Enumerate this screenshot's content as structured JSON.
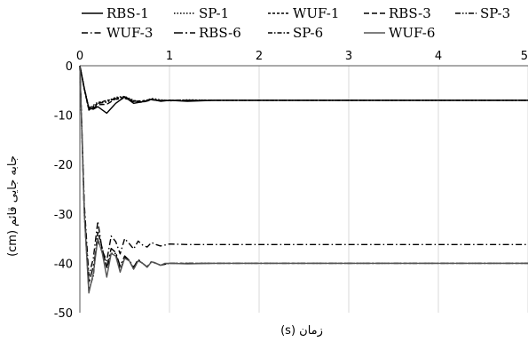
{
  "chart_data": {
    "type": "line",
    "xlabel": "زمان (s)",
    "ylabel": "جابه جایی قائم (cm)",
    "xlim": [
      0,
      5
    ],
    "ylim": [
      -50,
      0
    ],
    "x_ticks": [
      {
        "value": 0,
        "label": "0"
      },
      {
        "value": 1,
        "label": "1"
      },
      {
        "value": 2,
        "label": "2"
      },
      {
        "value": 3,
        "label": "3"
      },
      {
        "value": 4,
        "label": "4"
      },
      {
        "value": 5,
        "label": "5"
      }
    ],
    "y_ticks": [
      {
        "value": 0,
        "label": "0"
      },
      {
        "value": -10,
        "label": "-10"
      },
      {
        "value": -20,
        "label": "-20"
      },
      {
        "value": -30,
        "label": "-30"
      },
      {
        "value": -40,
        "label": "-40"
      },
      {
        "value": -50,
        "label": "-50"
      }
    ],
    "grid": {
      "vertical": true,
      "horizontal": false
    },
    "legend_position": "top",
    "series": [
      {
        "name": "RBS-1",
        "color": "#000000",
        "dash": "solid",
        "x": [
          0,
          0.05,
          0.1,
          0.15,
          0.2,
          0.3,
          0.4,
          0.5,
          0.6,
          0.7,
          0.8,
          0.9,
          1.0,
          1.2,
          1.5,
          2,
          3,
          4,
          5
        ],
        "y": [
          0,
          -4.6,
          -8.6,
          -8.8,
          -8.3,
          -9.6,
          -7.6,
          -6.3,
          -7.6,
          -7.3,
          -6.8,
          -7.2,
          -7.0,
          -7.2,
          -7.0,
          -7.0,
          -7.0,
          -7.0,
          -7.0
        ]
      },
      {
        "name": "SP-1",
        "color": "#000000",
        "dash": "dotted",
        "x": [
          0,
          0.05,
          0.1,
          0.15,
          0.2,
          0.3,
          0.4,
          0.5,
          0.6,
          0.7,
          0.8,
          0.9,
          1.0,
          1.2,
          1.5,
          2,
          3,
          4,
          5
        ],
        "y": [
          0,
          -4.5,
          -8.7,
          -8.0,
          -7.4,
          -7.2,
          -6.4,
          -6.2,
          -7.0,
          -7.4,
          -6.6,
          -6.9,
          -7.1,
          -6.9,
          -7.0,
          -7.0,
          -7.0,
          -7.0,
          -7.0
        ]
      },
      {
        "name": "WUF-1",
        "color": "#000000",
        "dash": "dashed-short",
        "x": [
          0,
          0.05,
          0.1,
          0.15,
          0.2,
          0.3,
          0.4,
          0.5,
          0.6,
          0.7,
          0.8,
          0.9,
          1.0,
          1.2,
          1.5,
          2,
          3,
          4,
          5
        ],
        "y": [
          0,
          -4.8,
          -9.0,
          -8.4,
          -7.6,
          -7.0,
          -6.8,
          -6.6,
          -7.2,
          -7.1,
          -6.8,
          -7.1,
          -7.0,
          -7.0,
          -7.0,
          -7.0,
          -7.0,
          -7.0,
          -7.0
        ]
      },
      {
        "name": "RBS-3",
        "color": "#000000",
        "dash": "dashed-long",
        "x": [
          0,
          0.05,
          0.1,
          0.15,
          0.2,
          0.3,
          0.4,
          0.5,
          0.6,
          0.7,
          0.8,
          0.9,
          1.0,
          1.2,
          1.5,
          2,
          3,
          4,
          5
        ],
        "y": [
          0,
          -4.7,
          -8.8,
          -8.6,
          -7.9,
          -7.8,
          -6.7,
          -6.4,
          -7.3,
          -7.4,
          -6.9,
          -7.1,
          -7.0,
          -7.0,
          -7.0,
          -7.0,
          -7.0,
          -7.0,
          -7.0
        ]
      },
      {
        "name": "SP-3",
        "color": "#000000",
        "dash": "dash-dot-dot",
        "x": [
          0,
          0.05,
          0.1,
          0.15,
          0.2,
          0.3,
          0.4,
          0.5,
          0.6,
          0.7,
          0.8,
          0.9,
          1.0,
          1.2,
          1.5,
          2,
          3,
          4,
          5
        ],
        "y": [
          0,
          -4.6,
          -8.5,
          -8.2,
          -7.6,
          -7.4,
          -6.5,
          -6.3,
          -7.1,
          -7.3,
          -6.8,
          -7.0,
          -7.0,
          -7.0,
          -7.0,
          -7.0,
          -7.0,
          -7.0,
          -7.0
        ]
      },
      {
        "name": "WUF-3",
        "color": "#000000",
        "dash": "dash-dot",
        "x": [
          0,
          0.05,
          0.1,
          0.15,
          0.2,
          0.25,
          0.3,
          0.35,
          0.4,
          0.45,
          0.5,
          0.55,
          0.6,
          0.65,
          0.7,
          0.75,
          0.8,
          0.85,
          0.9,
          1.0,
          1.2,
          1.5,
          2,
          3,
          4,
          5
        ],
        "y": [
          0,
          -28,
          -42.5,
          -39,
          -31.5,
          -37.5,
          -39.5,
          -34.5,
          -35.6,
          -38.1,
          -35,
          -36,
          -37.1,
          -35.5,
          -36.3,
          -36.7,
          -35.8,
          -36.2,
          -36.5,
          -36.1,
          -36.2,
          -36.2,
          -36.2,
          -36.2,
          -36.2,
          -36.2
        ]
      },
      {
        "name": "RBS-6",
        "color": "#000000",
        "dash": "dash-dot-long",
        "x": [
          0,
          0.05,
          0.1,
          0.15,
          0.2,
          0.25,
          0.3,
          0.35,
          0.4,
          0.45,
          0.5,
          0.55,
          0.6,
          0.65,
          0.7,
          0.75,
          0.8,
          0.85,
          0.9,
          1.0,
          1.2,
          1.5,
          2,
          3,
          4,
          5
        ],
        "y": [
          0,
          -29,
          -44.0,
          -40.5,
          -35.5,
          -37.2,
          -40.8,
          -37.0,
          -37.8,
          -40.6,
          -38.5,
          -39.4,
          -40.8,
          -39.2,
          -40.0,
          -40.7,
          -39.6,
          -40.0,
          -40.4,
          -40.0,
          -40.0,
          -40.0,
          -40.0,
          -40.0,
          -40.0,
          -40.0
        ]
      },
      {
        "name": "SP-6",
        "color": "#000000",
        "dash": "dash-dot-short",
        "x": [
          0,
          0.05,
          0.1,
          0.15,
          0.2,
          0.25,
          0.3,
          0.35,
          0.4,
          0.45,
          0.5,
          0.55,
          0.6,
          0.65,
          0.7,
          0.75,
          0.8,
          0.85,
          0.9,
          1.0,
          1.2,
          1.5,
          2,
          3,
          4,
          5
        ],
        "y": [
          0,
          -30,
          -45.5,
          -42.5,
          -33.5,
          -37.0,
          -41.0,
          -38.0,
          -38.0,
          -41.5,
          -38.8,
          -39.4,
          -41.2,
          -39.4,
          -40.0,
          -40.8,
          -39.7,
          -40.0,
          -40.4,
          -40.0,
          -40.0,
          -40.0,
          -40.0,
          -40.0,
          -40.0,
          -40.0
        ]
      },
      {
        "name": "WUF-6",
        "color": "#555555",
        "dash": "solid",
        "x": [
          0,
          0.05,
          0.1,
          0.15,
          0.2,
          0.25,
          0.3,
          0.35,
          0.4,
          0.45,
          0.5,
          0.55,
          0.6,
          0.65,
          0.7,
          0.75,
          0.8,
          0.85,
          0.9,
          0.95,
          1.0,
          1.2,
          1.5,
          2,
          3,
          4,
          5
        ],
        "y": [
          0,
          -30,
          -46.0,
          -42.0,
          -35.0,
          -38.0,
          -42.8,
          -38.0,
          -38.5,
          -41.8,
          -39.0,
          -39.5,
          -41.2,
          -39.5,
          -40.0,
          -40.8,
          -39.7,
          -40.0,
          -40.4,
          -40.0,
          -40.0,
          -40.1,
          -40.0,
          -40.0,
          -40.0,
          -40.0,
          -40.0
        ]
      }
    ]
  }
}
